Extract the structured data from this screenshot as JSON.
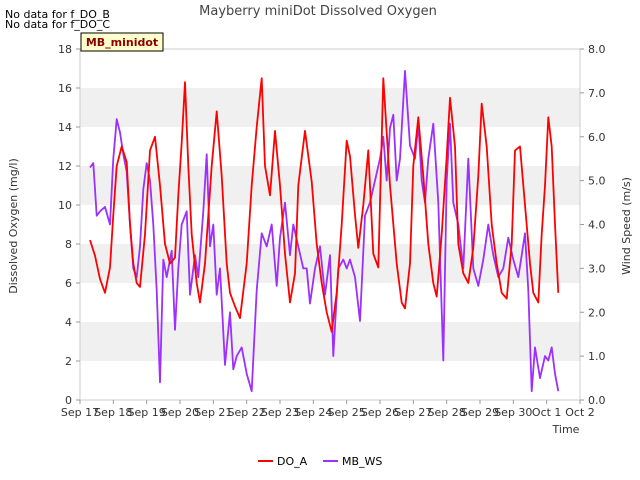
{
  "no_data_notes": [
    "No data for f_DO_B",
    "No data for f_DO_C"
  ],
  "badge": "MB_minidot",
  "colors": {
    "do_a": "#ff0000",
    "mb_ws": "#9b30ff",
    "band": "#f0f0f0",
    "badge_bg": "#ffffcc"
  },
  "chart_data": {
    "type": "line",
    "title": "Mayberry miniDot Dissolved Oxygen",
    "xlabel": "Time",
    "ylabel": "Dissolved Oxygen (mg/l)",
    "y2label": "Wind Speed (m/s)",
    "x_ticks": [
      "Sep 17",
      "Sep 18",
      "Sep 19",
      "Sep 20",
      "Sep 21",
      "Sep 22",
      "Sep 23",
      "Sep 24",
      "Sep 25",
      "Sep 26",
      "Sep 27",
      "Sep 28",
      "Sep 29",
      "Sep 30",
      "Oct 1",
      "Oct 2"
    ],
    "xlim": [
      0,
      15
    ],
    "ylim": [
      0,
      18
    ],
    "y_ticks": [
      "0",
      "2",
      "4",
      "6",
      "8",
      "10",
      "12",
      "14",
      "16",
      "18"
    ],
    "y2lim": [
      0,
      8
    ],
    "y2_ticks": [
      "0.0",
      "1.0",
      "2.0",
      "3.0",
      "4.0",
      "5.0",
      "6.0",
      "7.0",
      "8.0"
    ],
    "grid": "alternating horizontal bands",
    "legend": "bottom-center",
    "series": [
      {
        "name": "DO_A",
        "axis": "left",
        "x": [
          0.3,
          0.45,
          0.6,
          0.75,
          0.9,
          1.0,
          1.1,
          1.25,
          1.4,
          1.5,
          1.6,
          1.7,
          1.8,
          1.95,
          2.1,
          2.25,
          2.4,
          2.55,
          2.7,
          2.85,
          2.95,
          3.05,
          3.15,
          3.25,
          3.35,
          3.5,
          3.6,
          3.75,
          3.95,
          4.1,
          4.25,
          4.4,
          4.5,
          4.65,
          4.8,
          5.0,
          5.15,
          5.3,
          5.45,
          5.55,
          5.7,
          5.85,
          6.0,
          6.15,
          6.3,
          6.45,
          6.55,
          6.75,
          6.95,
          7.1,
          7.25,
          7.4,
          7.55,
          7.7,
          7.85,
          8.0,
          8.1,
          8.25,
          8.35,
          8.5,
          8.65,
          8.8,
          8.95,
          9.1,
          9.3,
          9.5,
          9.65,
          9.75,
          9.9,
          10.0,
          10.15,
          10.3,
          10.45,
          10.6,
          10.7,
          10.85,
          11.0,
          11.1,
          11.25,
          11.35,
          11.5,
          11.65,
          11.8,
          11.95,
          12.05,
          12.2,
          12.35,
          12.5,
          12.65,
          12.8,
          12.95,
          13.05,
          13.2,
          13.35,
          13.5,
          13.6,
          13.75,
          13.85,
          13.95,
          14.05,
          14.15,
          14.25,
          14.35
        ],
        "values": [
          8.2,
          7.4,
          6.2,
          5.5,
          6.8,
          9.5,
          12.0,
          13.0,
          12.2,
          9.0,
          7.0,
          6.0,
          5.8,
          8.5,
          12.8,
          13.5,
          11.0,
          8.0,
          7.0,
          7.3,
          10.5,
          13.2,
          16.3,
          12.0,
          8.5,
          6.0,
          5.0,
          7.0,
          12.0,
          14.8,
          11.5,
          7.0,
          5.5,
          4.8,
          4.2,
          7.0,
          11.0,
          14.0,
          16.5,
          12.0,
          10.5,
          13.8,
          11.0,
          7.5,
          5.0,
          6.5,
          11.0,
          13.8,
          11.2,
          8.0,
          6.0,
          4.5,
          3.5,
          5.5,
          9.0,
          13.3,
          12.5,
          9.5,
          7.8,
          10.0,
          12.8,
          7.5,
          6.8,
          16.5,
          11.0,
          7.0,
          5.0,
          4.7,
          7.0,
          12.0,
          14.5,
          11.5,
          8.0,
          6.0,
          5.3,
          8.5,
          12.5,
          15.5,
          13.0,
          8.0,
          6.5,
          6.0,
          7.8,
          11.5,
          15.2,
          13.0,
          9.0,
          7.0,
          5.5,
          5.2,
          8.0,
          12.8,
          13.0,
          10.0,
          7.0,
          5.5,
          5.0,
          8.5,
          11.0,
          14.5,
          13.0,
          9.0,
          5.5
        ]
      },
      {
        "name": "MB_WS",
        "axis": "right",
        "x": [
          0.3,
          0.4,
          0.5,
          0.6,
          0.75,
          0.9,
          1.0,
          1.1,
          1.2,
          1.3,
          1.4,
          1.5,
          1.6,
          1.7,
          1.8,
          1.9,
          2.0,
          2.1,
          2.2,
          2.3,
          2.4,
          2.5,
          2.6,
          2.75,
          2.85,
          2.95,
          3.05,
          3.2,
          3.3,
          3.45,
          3.55,
          3.7,
          3.8,
          3.9,
          4.0,
          4.1,
          4.2,
          4.35,
          4.5,
          4.6,
          4.7,
          4.85,
          5.0,
          5.15,
          5.3,
          5.45,
          5.6,
          5.75,
          5.9,
          6.0,
          6.15,
          6.3,
          6.4,
          6.55,
          6.7,
          6.8,
          6.9,
          7.05,
          7.2,
          7.35,
          7.5,
          7.6,
          7.75,
          7.9,
          8.0,
          8.1,
          8.25,
          8.4,
          8.55,
          8.7,
          8.85,
          9.0,
          9.1,
          9.2,
          9.3,
          9.4,
          9.5,
          9.6,
          9.75,
          9.9,
          10.05,
          10.15,
          10.25,
          10.35,
          10.45,
          10.6,
          10.75,
          10.9,
          11.0,
          11.1,
          11.2,
          11.35,
          11.5,
          11.65,
          11.8,
          11.95,
          12.1,
          12.25,
          12.4,
          12.55,
          12.7,
          12.85,
          13.0,
          13.15,
          13.25,
          13.35,
          13.45,
          13.55,
          13.65,
          13.8,
          13.95,
          14.05,
          14.15,
          14.25,
          14.35
        ],
        "values": [
          5.3,
          5.4,
          4.2,
          4.3,
          4.4,
          4.0,
          5.5,
          6.4,
          6.1,
          5.6,
          5.2,
          4.0,
          3.0,
          2.8,
          3.5,
          4.8,
          5.4,
          5.0,
          4.0,
          2.5,
          0.4,
          3.2,
          2.8,
          3.4,
          1.6,
          3.0,
          4.0,
          4.3,
          2.4,
          3.3,
          2.8,
          4.3,
          5.6,
          3.5,
          4.0,
          2.4,
          3.0,
          0.8,
          2.0,
          0.7,
          1.0,
          1.2,
          0.6,
          0.2,
          2.5,
          3.8,
          3.5,
          4.0,
          2.6,
          3.7,
          4.5,
          3.3,
          4.0,
          3.5,
          3.0,
          3.0,
          2.2,
          3.0,
          3.5,
          2.4,
          3.3,
          1.0,
          3.0,
          3.2,
          3.0,
          3.2,
          2.8,
          1.8,
          4.2,
          4.5,
          5.0,
          5.5,
          6.0,
          5.0,
          6.2,
          6.5,
          5.0,
          5.5,
          7.5,
          5.8,
          5.5,
          6.3,
          5.0,
          4.5,
          5.5,
          6.3,
          4.5,
          0.9,
          5.0,
          6.3,
          4.5,
          4.0,
          3.0,
          5.5,
          3.0,
          2.6,
          3.2,
          4.0,
          3.3,
          2.8,
          3.0,
          3.7,
          3.2,
          2.8,
          3.3,
          3.8,
          2.5,
          0.2,
          1.2,
          0.5,
          1.0,
          0.9,
          1.2,
          0.6,
          0.2
        ]
      }
    ]
  }
}
